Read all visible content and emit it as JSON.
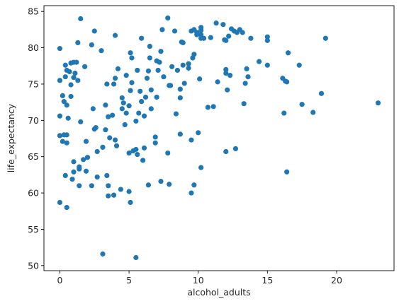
{
  "chart_data": {
    "type": "scatter",
    "title": "",
    "xlabel": "alcohol_adults",
    "ylabel": "life_expectancy",
    "xlim": [
      -1.15,
      24.15
    ],
    "ylim": [
      49.3,
      85.8
    ],
    "xticks": [
      0,
      5,
      10,
      15,
      20
    ],
    "yticks": [
      50,
      55,
      60,
      65,
      70,
      75,
      80,
      85
    ],
    "grid": false,
    "legend": "none",
    "marker_color": "#1f77b4",
    "points": [
      [
        0.0,
        58.7
      ],
      [
        0.0,
        67.9
      ],
      [
        0.0,
        70.6
      ],
      [
        0.0,
        75.5
      ],
      [
        0.0,
        79.9
      ],
      [
        0.2,
        67.1
      ],
      [
        0.2,
        73.4
      ],
      [
        0.3,
        68.0
      ],
      [
        0.3,
        72.6
      ],
      [
        0.4,
        62.4
      ],
      [
        0.4,
        76.0
      ],
      [
        0.4,
        77.6
      ],
      [
        0.5,
        68.0
      ],
      [
        0.5,
        66.9
      ],
      [
        0.5,
        58.0
      ],
      [
        0.5,
        72.1
      ],
      [
        0.5,
        76.9
      ],
      [
        0.6,
        70.3
      ],
      [
        0.7,
        76.7
      ],
      [
        0.8,
        74.9
      ],
      [
        0.8,
        77.9
      ],
      [
        0.8,
        73.3
      ],
      [
        0.9,
        61.9
      ],
      [
        1.0,
        75.9
      ],
      [
        1.0,
        64.3
      ],
      [
        1.0,
        62.9
      ],
      [
        1.0,
        78.0
      ],
      [
        1.1,
        76.5
      ],
      [
        1.2,
        78.0
      ],
      [
        1.3,
        75.5
      ],
      [
        1.3,
        80.7
      ],
      [
        1.4,
        63.3
      ],
      [
        1.4,
        63.6
      ],
      [
        1.4,
        61.0
      ],
      [
        1.5,
        69.8
      ],
      [
        1.5,
        84.0
      ],
      [
        1.7,
        64.6
      ],
      [
        1.8,
        77.4
      ],
      [
        1.9,
        67.1
      ],
      [
        1.9,
        63.0
      ],
      [
        2.0,
        64.9
      ],
      [
        2.3,
        61.0
      ],
      [
        2.3,
        80.4
      ],
      [
        2.4,
        71.6
      ],
      [
        2.5,
        82.3
      ],
      [
        2.5,
        68.8
      ],
      [
        2.6,
        69.0
      ],
      [
        2.7,
        65.7
      ],
      [
        2.7,
        62.2
      ],
      [
        3.0,
        79.6
      ],
      [
        3.1,
        66.3
      ],
      [
        3.1,
        51.6
      ],
      [
        3.3,
        72.1
      ],
      [
        3.3,
        68.7
      ],
      [
        3.4,
        62.4
      ],
      [
        3.4,
        75.0
      ],
      [
        3.5,
        70.5
      ],
      [
        3.5,
        59.6
      ],
      [
        3.5,
        61.0
      ],
      [
        3.6,
        67.6
      ],
      [
        3.8,
        70.7
      ],
      [
        3.9,
        75.0
      ],
      [
        3.9,
        59.7
      ],
      [
        4.0,
        67.3
      ],
      [
        4.0,
        75.8
      ],
      [
        4.0,
        81.7
      ],
      [
        4.1,
        66.5
      ],
      [
        4.2,
        77.1
      ],
      [
        4.4,
        60.5
      ],
      [
        4.5,
        71.6
      ],
      [
        4.5,
        73.1
      ],
      [
        4.6,
        72.4
      ],
      [
        4.7,
        69.4
      ],
      [
        4.8,
        71.0
      ],
      [
        4.8,
        76.2
      ],
      [
        5.0,
        60.2
      ],
      [
        5.0,
        72.0
      ],
      [
        5.0,
        65.5
      ],
      [
        5.1,
        74.1
      ],
      [
        5.1,
        58.7
      ],
      [
        5.1,
        79.3
      ],
      [
        5.2,
        78.6
      ],
      [
        5.2,
        75.2
      ],
      [
        5.3,
        65.8
      ],
      [
        5.5,
        69.9
      ],
      [
        5.5,
        66.0
      ],
      [
        5.5,
        51.1
      ],
      [
        5.6,
        76.9
      ],
      [
        5.6,
        65.3
      ],
      [
        5.7,
        71.0
      ],
      [
        5.8,
        74.0
      ],
      [
        5.9,
        81.3
      ],
      [
        5.9,
        72.6
      ],
      [
        6.0,
        64.5
      ],
      [
        6.1,
        70.6
      ],
      [
        6.1,
        66.2
      ],
      [
        6.2,
        73.2
      ],
      [
        6.3,
        75.8
      ],
      [
        6.4,
        76.8
      ],
      [
        6.4,
        61.1
      ],
      [
        6.5,
        78.6
      ],
      [
        6.5,
        80.2
      ],
      [
        6.6,
        71.6
      ],
      [
        6.6,
        74.2
      ],
      [
        6.9,
        67.7
      ],
      [
        6.9,
        66.9
      ],
      [
        7.0,
        73.2
      ],
      [
        7.0,
        78.2
      ],
      [
        7.1,
        76.9
      ],
      [
        7.2,
        78.0
      ],
      [
        7.3,
        61.6
      ],
      [
        7.3,
        79.5
      ],
      [
        7.4,
        82.5
      ],
      [
        7.5,
        76.0
      ],
      [
        7.8,
        84.1
      ],
      [
        7.8,
        65.5
      ],
      [
        7.9,
        61.2
      ],
      [
        7.9,
        74.8
      ],
      [
        8.0,
        74.8
      ],
      [
        8.1,
        77.4
      ],
      [
        8.3,
        82.3
      ],
      [
        8.4,
        70.9
      ],
      [
        8.5,
        76.9
      ],
      [
        8.7,
        74.3
      ],
      [
        8.7,
        73.1
      ],
      [
        8.7,
        68.1
      ],
      [
        8.8,
        80.8
      ],
      [
        8.9,
        80.7
      ],
      [
        8.9,
        77.6
      ],
      [
        9.0,
        75.1
      ],
      [
        9.3,
        77.8
      ],
      [
        9.3,
        77.2
      ],
      [
        9.5,
        67.3
      ],
      [
        9.5,
        60.0
      ],
      [
        9.5,
        82.3
      ],
      [
        9.6,
        78.6
      ],
      [
        9.7,
        61.1
      ],
      [
        9.7,
        79.1
      ],
      [
        9.7,
        82.5
      ],
      [
        9.9,
        82.1
      ],
      [
        9.9,
        81.8
      ],
      [
        10.0,
        68.3
      ],
      [
        10.1,
        75.7
      ],
      [
        10.2,
        63.5
      ],
      [
        10.2,
        81.8
      ],
      [
        10.2,
        82.4
      ],
      [
        10.2,
        82.8
      ],
      [
        10.2,
        81.3
      ],
      [
        10.4,
        81.3
      ],
      [
        10.7,
        71.8
      ],
      [
        10.9,
        81.4
      ],
      [
        11.1,
        71.9
      ],
      [
        11.3,
        83.4
      ],
      [
        11.4,
        75.3
      ],
      [
        11.8,
        83.2
      ],
      [
        11.9,
        81.1
      ],
      [
        12.0,
        65.7
      ],
      [
        12.0,
        77.0
      ],
      [
        12.0,
        76.5
      ],
      [
        12.0,
        81.0
      ],
      [
        12.2,
        81.6
      ],
      [
        12.1,
        74.2
      ],
      [
        12.3,
        76.2
      ],
      [
        12.4,
        82.6
      ],
      [
        12.6,
        82.3
      ],
      [
        12.7,
        66.1
      ],
      [
        12.8,
        82.1
      ],
      [
        13.0,
        82.5
      ],
      [
        13.2,
        82.1
      ],
      [
        13.3,
        72.3
      ],
      [
        13.4,
        75.1
      ],
      [
        13.5,
        77.1
      ],
      [
        13.6,
        76.0
      ],
      [
        13.8,
        81.3
      ],
      [
        14.4,
        78.1
      ],
      [
        15.0,
        81.0
      ],
      [
        15.0,
        81.5
      ],
      [
        15.0,
        77.6
      ],
      [
        16.1,
        75.8
      ],
      [
        16.2,
        71.0
      ],
      [
        16.3,
        75.4
      ],
      [
        16.4,
        75.3
      ],
      [
        16.4,
        62.9
      ],
      [
        16.5,
        79.3
      ],
      [
        17.3,
        77.6
      ],
      [
        17.5,
        72.2
      ],
      [
        18.3,
        71.1
      ],
      [
        18.9,
        73.7
      ],
      [
        19.2,
        81.3
      ],
      [
        23.0,
        72.4
      ]
    ]
  }
}
